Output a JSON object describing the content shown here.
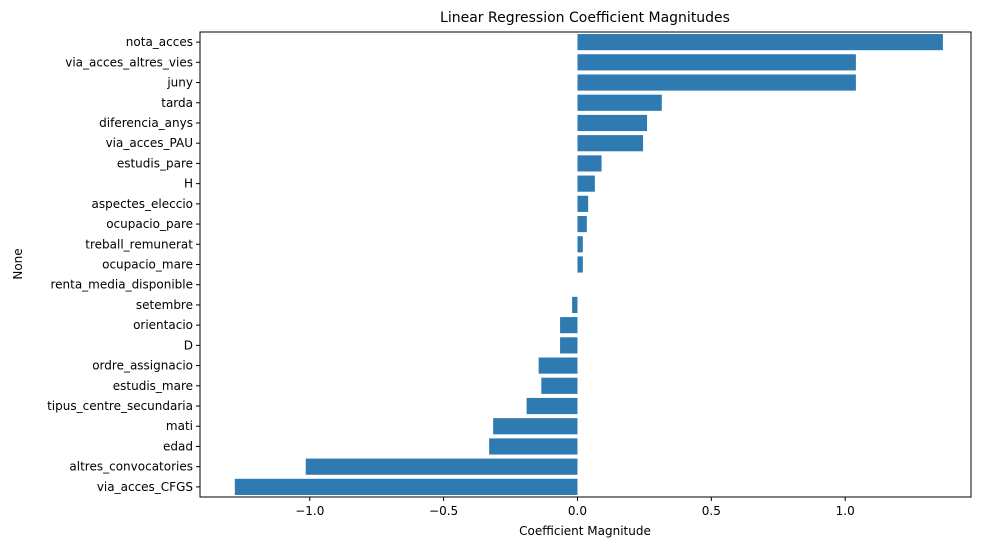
{
  "chart_data": {
    "type": "bar",
    "orientation": "horizontal",
    "title": "Linear Regression Coefficient Magnitudes",
    "xlabel": "Coefficient Magnitude",
    "ylabel": "None",
    "xlim": [
      -1.41,
      1.47
    ],
    "xticks": [
      -1.0,
      -0.5,
      0.0,
      0.5,
      1.0
    ],
    "xtick_labels": [
      "−1.0",
      "−0.5",
      "0.0",
      "0.5",
      "1.0"
    ],
    "grid": false,
    "legend": "none",
    "bar_color": "#2f7bb1",
    "categories": [
      "nota_acces",
      "via_acces_altres_vies",
      "juny",
      "tarda",
      "diferencia_anys",
      "via_acces_PAU",
      "estudis_pare",
      "H",
      "aspectes_eleccio",
      "ocupacio_pare",
      "treball_remunerat",
      "ocupacio_mare",
      "renta_media_disponible",
      "setembre",
      "orientacio",
      "D",
      "ordre_assignacio",
      "estudis_mare",
      "tipus_centre_secundaria",
      "mati",
      "edad",
      "altres_convocatories",
      "via_acces_CFGS"
    ],
    "values": [
      1.365,
      1.04,
      1.04,
      0.315,
      0.26,
      0.245,
      0.09,
      0.065,
      0.04,
      0.035,
      0.02,
      0.02,
      0.0,
      -0.02,
      -0.065,
      -0.065,
      -0.145,
      -0.135,
      -0.19,
      -0.315,
      -0.33,
      -1.015,
      -1.28
    ]
  }
}
